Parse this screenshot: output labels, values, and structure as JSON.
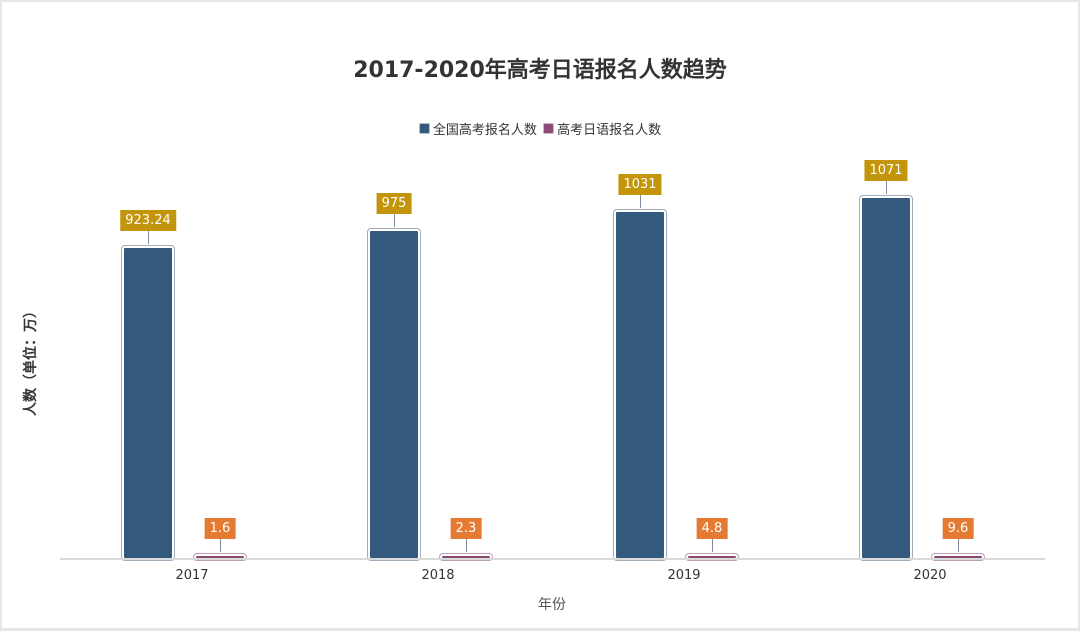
{
  "chart_data": {
    "type": "bar",
    "title": "2017-2020年高考日语报名人数趋势",
    "xlabel": "年份",
    "ylabel": "人数（单位：万）",
    "categories": [
      "2017",
      "2018",
      "2019",
      "2020"
    ],
    "series": [
      {
        "name": "全国高考报名人数",
        "values": [
          923.24,
          975,
          1031,
          1071
        ],
        "color": "#335a7c",
        "label_color": "#c3950a"
      },
      {
        "name": "高考日语报名人数",
        "values": [
          1.6,
          2.3,
          4.8,
          9.6
        ],
        "color": "#8a4c76",
        "label_color": "#e57a33"
      }
    ],
    "data_labels": [
      [
        "923.24",
        "975",
        "1031",
        "1071"
      ],
      [
        "1.6",
        "2.3",
        "4.8",
        "9.6"
      ]
    ],
    "ylim": [
      0,
      1200
    ],
    "grid": false,
    "legend_position": "top"
  }
}
